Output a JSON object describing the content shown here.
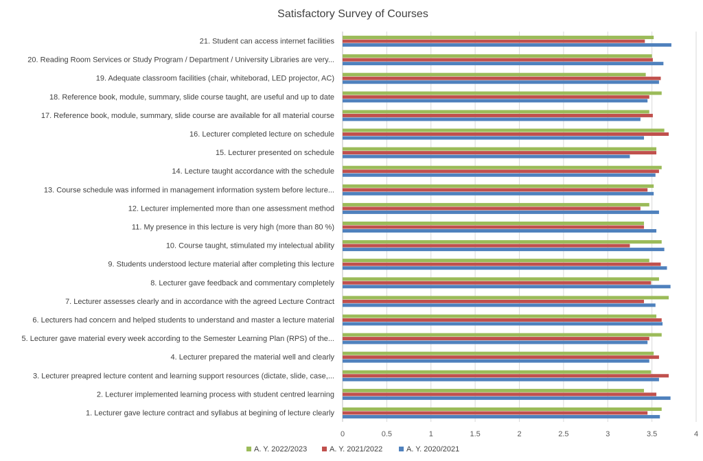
{
  "chart_data": {
    "type": "bar",
    "orientation": "horizontal",
    "title": "Satisfactory Survey of Courses",
    "xlim": [
      0,
      4
    ],
    "x_ticks": [
      "0",
      "0.5",
      "1",
      "1.5",
      "2",
      "2.5",
      "3",
      "3.5",
      "4"
    ],
    "x_tick_values": [
      0,
      0.5,
      1,
      1.5,
      2,
      2.5,
      3,
      3.5,
      4
    ],
    "grid": true,
    "legend_position": "bottom",
    "categories": [
      "1. Lecturer gave lecture contract and syllabus at begining of lecture clearly",
      "2. Lecturer implemented learning process with student centred learning",
      "3. Lecturer  preapred lecture content and learning support resources (dictate, slide, case,...",
      "4. Lecturer prepared the material well and clearly",
      "5. Lecturer gave material every week according to the Semester Learning Plan (RPS) of the...",
      "6. Lecturers had concern and helped students to understand and master a lecture material",
      "7. Lecturer assesses clearly and in accordance with the agreed Lecture Contract",
      "8. Lecturer gave feedback and commentary completely",
      "9. Students understood lecture material after completing this lecture",
      "10. Course taught, stimulated my intelectual ability",
      "11. My presence in this lecture is very high (more than 80 %)",
      "12. Lecturer implemented more than one assessment method",
      "13. Course schedule was informed in management information system before lecture...",
      "14. Lecture taught accordance with the schedule",
      "15. Lecturer presented on schedule",
      "16. Lecturer completed lecture on schedule",
      "17. Reference book, module, summary, slide course are available for all material course",
      "18. Reference book, module, summary, slide course taught, are useful and up to date",
      "19. Adequate classroom facilities (chair, whiteborad, LED  projector, AC)",
      "20. Reading Room Services or Study Program / Department / University Libraries are very...",
      "21. Student can access internet facilities"
    ],
    "series": [
      {
        "name": "A. Y. 2022/2023",
        "color": "#9BBB59",
        "values": [
          3.61,
          3.41,
          3.49,
          3.52,
          3.61,
          3.55,
          3.69,
          3.58,
          3.47,
          3.61,
          3.41,
          3.47,
          3.52,
          3.61,
          3.55,
          3.64,
          3.47,
          3.61,
          3.43,
          3.5,
          3.52
        ]
      },
      {
        "name": "A. Y. 2021/2022",
        "color": "#C0504D",
        "values": [
          3.45,
          3.55,
          3.69,
          3.58,
          3.47,
          3.61,
          3.41,
          3.49,
          3.6,
          3.25,
          3.41,
          3.37,
          3.45,
          3.58,
          3.55,
          3.69,
          3.51,
          3.47,
          3.6,
          3.51,
          3.42
        ]
      },
      {
        "name": "A. Y. 2020/2021",
        "color": "#4F81BD",
        "values": [
          3.59,
          3.71,
          3.58,
          3.47,
          3.45,
          3.62,
          3.54,
          3.71,
          3.67,
          3.64,
          3.55,
          3.58,
          3.52,
          3.54,
          3.25,
          3.41,
          3.37,
          3.45,
          3.58,
          3.63,
          3.72
        ]
      }
    ]
  }
}
